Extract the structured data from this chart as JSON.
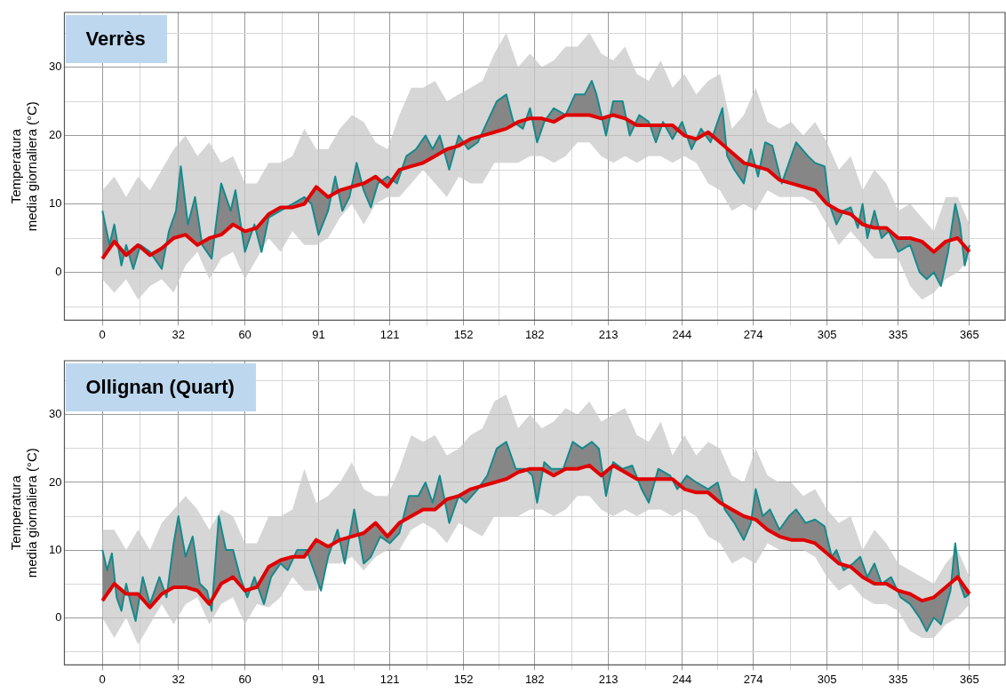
{
  "chart_data": [
    {
      "type": "line",
      "title": "Verrès",
      "ylabel": "Temperatura\nmedia giornaliera (°C)",
      "grid": true,
      "marker": "none",
      "xlim": [
        -16,
        380
      ],
      "ylim": [
        -7,
        38
      ],
      "xticks": [
        0,
        {
          "value": 16,
          "label": null
        },
        32,
        {
          "value": 46,
          "label": null
        },
        60,
        {
          "value": 75.5,
          "label": null
        },
        91,
        {
          "value": 106,
          "label": null
        },
        121,
        {
          "value": 136.5,
          "label": null
        },
        152,
        {
          "value": 167,
          "label": null
        },
        182,
        {
          "value": 197.5,
          "label": null
        },
        213,
        {
          "value": 228.5,
          "label": null
        },
        244,
        {
          "value": 259,
          "label": null
        },
        274,
        {
          "value": 289.5,
          "label": null
        },
        305,
        {
          "value": 320,
          "label": null
        },
        335,
        {
          "value": 350,
          "label": null
        },
        365
      ],
      "yticks": [
        {
          "value": -5,
          "label": null
        },
        0,
        {
          "value": 5,
          "label": null
        },
        10,
        {
          "value": 15,
          "label": null
        },
        20,
        {
          "value": 25,
          "label": null
        },
        30,
        {
          "value": 35,
          "label": null
        }
      ],
      "series": [
        {
          "color": "#e00000",
          "x": [
            0,
            5,
            10,
            15,
            20,
            25,
            30,
            35,
            40,
            45,
            50,
            55,
            60,
            65,
            70,
            75,
            80,
            85,
            90,
            95,
            100,
            105,
            110,
            115,
            120,
            125,
            130,
            135,
            140,
            145,
            150,
            155,
            160,
            165,
            170,
            175,
            180,
            185,
            190,
            195,
            200,
            205,
            210,
            215,
            220,
            225,
            230,
            235,
            240,
            245,
            250,
            255,
            260,
            265,
            270,
            275,
            280,
            285,
            290,
            295,
            300,
            305,
            310,
            315,
            320,
            325,
            330,
            335,
            340,
            345,
            350,
            355,
            360,
            365
          ],
          "values": [
            2,
            4.5,
            2.5,
            4,
            2.5,
            3.5,
            5,
            5.5,
            4,
            5,
            5.5,
            7,
            6,
            6.5,
            8.5,
            9.5,
            9.5,
            10,
            12.5,
            11,
            12,
            12.5,
            13,
            14,
            12.5,
            15,
            15.5,
            16,
            17,
            18,
            18.5,
            19.5,
            20,
            20.5,
            21,
            22,
            22.5,
            22.5,
            22,
            23,
            23,
            23,
            22.5,
            23,
            22.5,
            21.5,
            21.5,
            21.5,
            21.5,
            20,
            19.5,
            20.5,
            19,
            17.5,
            16,
            15.5,
            15,
            13.5,
            13,
            12.5,
            12,
            10,
            9,
            8.5,
            7,
            6.5,
            6.5,
            5,
            5,
            4.5,
            3,
            4.5,
            5,
            3
          ],
          "upper": [
            12,
            14,
            11,
            14,
            12,
            15,
            18,
            20,
            17,
            19,
            16,
            17,
            13,
            13,
            16,
            16,
            17,
            21,
            18,
            18,
            21,
            23,
            22,
            19,
            18,
            23,
            27,
            27,
            28,
            25,
            26,
            27,
            28,
            32,
            35,
            30,
            32,
            30,
            31,
            33,
            33,
            35,
            32,
            31,
            33,
            29,
            28,
            31,
            27,
            29,
            26,
            28,
            29,
            21,
            23,
            27,
            22,
            21,
            22,
            20,
            22,
            19,
            15,
            17,
            12,
            15,
            13,
            9,
            10,
            8,
            6,
            11,
            11,
            7
          ],
          "lower": [
            -1,
            -3,
            -1,
            -4,
            -2,
            -1,
            -3,
            1,
            3,
            -1,
            2,
            3,
            -1,
            2,
            5,
            3,
            6,
            4,
            4,
            5,
            8,
            10,
            7,
            10,
            11,
            11,
            13,
            15,
            13,
            11,
            14,
            13,
            13,
            16,
            16,
            16,
            17,
            17,
            16,
            17,
            19,
            19,
            17,
            16,
            17,
            16,
            17,
            17,
            16,
            17,
            16,
            13,
            12,
            9,
            10,
            9,
            12,
            11,
            11,
            11,
            10,
            7,
            4,
            6,
            4,
            2,
            2,
            2,
            -2,
            -4,
            -3,
            -1,
            0,
            2
          ]
        },
        {
          "color": "#148a8c",
          "x": [
            0,
            3,
            5,
            8,
            10,
            13,
            16,
            20,
            25,
            28,
            31,
            33,
            36,
            39,
            42,
            46,
            50,
            54,
            56,
            60,
            64,
            67,
            70,
            75,
            80,
            85,
            88,
            91,
            95,
            98,
            101,
            104,
            107,
            110,
            113,
            116,
            120,
            124,
            128,
            132,
            136,
            139,
            142,
            146,
            150,
            154,
            158,
            162,
            166,
            170,
            173,
            177,
            180,
            183,
            186,
            190,
            195,
            199,
            203,
            206,
            208,
            212,
            215,
            219,
            222,
            226,
            230,
            233,
            236,
            240,
            244,
            248,
            252,
            256,
            259,
            261,
            263,
            266,
            270,
            273,
            276,
            279,
            282,
            286,
            289,
            292,
            297,
            300,
            304,
            306,
            309,
            312,
            315,
            318,
            320,
            322,
            325,
            328,
            331,
            335,
            340,
            344,
            347,
            350,
            353,
            356,
            359,
            361,
            363,
            365
          ],
          "values": [
            9,
            4,
            7,
            1,
            4,
            0.5,
            4,
            3,
            0.5,
            6,
            9,
            15.5,
            7,
            11,
            4,
            2,
            13,
            9,
            12,
            3,
            7,
            3,
            8,
            9,
            10,
            11,
            10,
            5.5,
            9,
            14,
            9,
            11,
            16,
            12,
            9.5,
            13,
            14,
            13,
            17,
            18,
            20,
            18,
            20,
            15,
            20,
            18,
            19,
            22,
            25,
            26,
            22,
            21,
            24,
            19,
            22,
            24,
            23,
            26,
            26,
            28,
            26,
            20,
            25,
            25,
            20,
            23,
            22,
            19,
            22,
            19.5,
            22,
            18,
            21,
            19,
            22,
            24,
            17,
            15,
            13,
            18,
            14,
            19,
            18.5,
            13,
            16,
            19,
            17,
            16,
            15.5,
            10,
            7,
            9,
            9.5,
            6.5,
            10,
            5,
            9,
            5,
            6,
            3,
            4,
            0,
            -1,
            0,
            -2,
            3,
            10,
            7,
            1,
            4
          ]
        }
      ]
    },
    {
      "type": "line",
      "title": "Ollignan (Quart)",
      "ylabel": "Temperatura\nmedia giornaliera (°C)",
      "grid": true,
      "marker": "none",
      "xlim": [
        -16,
        380
      ],
      "ylim": [
        -7,
        38
      ],
      "xticks": [
        0,
        {
          "value": 16,
          "label": null
        },
        32,
        {
          "value": 46,
          "label": null
        },
        60,
        {
          "value": 75.5,
          "label": null
        },
        91,
        {
          "value": 106,
          "label": null
        },
        121,
        {
          "value": 136.5,
          "label": null
        },
        152,
        {
          "value": 167,
          "label": null
        },
        182,
        {
          "value": 197.5,
          "label": null
        },
        213,
        {
          "value": 228.5,
          "label": null
        },
        244,
        {
          "value": 259,
          "label": null
        },
        274,
        {
          "value": 289.5,
          "label": null
        },
        305,
        {
          "value": 320,
          "label": null
        },
        335,
        {
          "value": 350,
          "label": null
        },
        365
      ],
      "yticks": [
        {
          "value": -5,
          "label": null
        },
        0,
        {
          "value": 5,
          "label": null
        },
        10,
        {
          "value": 15,
          "label": null
        },
        20,
        {
          "value": 25,
          "label": null
        },
        30,
        {
          "value": 35,
          "label": null
        }
      ],
      "series": [
        {
          "color": "#e00000",
          "x": [
            0,
            5,
            10,
            15,
            20,
            25,
            30,
            35,
            40,
            45,
            50,
            55,
            60,
            65,
            70,
            75,
            80,
            85,
            90,
            95,
            100,
            105,
            110,
            115,
            120,
            125,
            130,
            135,
            140,
            145,
            150,
            155,
            160,
            165,
            170,
            175,
            180,
            185,
            190,
            195,
            200,
            205,
            210,
            215,
            220,
            225,
            230,
            235,
            240,
            245,
            250,
            255,
            260,
            265,
            270,
            275,
            280,
            285,
            290,
            295,
            300,
            305,
            310,
            315,
            320,
            325,
            330,
            335,
            340,
            345,
            350,
            355,
            360,
            365
          ],
          "values": [
            2.5,
            5,
            3.5,
            3.5,
            1.5,
            3.5,
            4.5,
            4.5,
            4,
            2,
            5,
            6,
            4,
            4.5,
            7.5,
            8.5,
            9,
            9,
            11.5,
            10.5,
            11.5,
            12,
            12.5,
            14,
            12,
            14,
            15,
            16,
            16,
            17.5,
            18,
            19,
            19.5,
            20,
            20.5,
            21.5,
            22,
            22,
            21,
            22,
            22,
            22.5,
            21,
            22.5,
            21.5,
            20.5,
            20.5,
            20.5,
            20.5,
            19,
            18.5,
            18.5,
            17,
            16,
            15,
            14.5,
            13,
            12,
            11.5,
            11.5,
            11,
            9.5,
            8,
            7.5,
            6,
            5,
            5,
            4,
            3.5,
            2.5,
            3,
            4.5,
            6,
            3.5
          ],
          "upper": [
            13,
            13,
            10,
            13,
            10,
            14,
            16,
            18,
            16,
            13,
            16,
            15,
            11,
            11,
            15,
            15,
            16,
            22,
            17,
            18,
            20,
            23,
            19,
            18,
            18,
            22,
            27,
            26,
            27,
            24,
            25,
            27,
            28,
            32,
            33,
            28,
            30,
            28,
            29,
            31,
            30,
            32,
            29,
            30,
            31,
            27,
            26,
            29,
            24,
            27,
            24,
            26,
            25,
            21,
            20,
            25,
            21,
            20,
            20,
            18,
            19,
            16,
            14,
            15,
            10,
            13,
            11,
            8,
            7,
            6,
            5,
            8,
            10,
            6
          ],
          "lower": [
            0,
            -3,
            0,
            -4,
            -1,
            2,
            -1,
            2,
            3,
            -1,
            2,
            3,
            -1,
            2,
            1.5,
            3,
            6,
            4,
            4,
            8,
            8,
            9,
            7,
            9,
            10,
            10,
            13,
            14,
            13,
            11,
            14,
            13,
            12,
            15,
            15,
            15,
            16,
            16,
            15,
            16,
            18,
            18,
            16,
            15,
            16,
            15,
            16,
            16,
            15,
            16,
            15,
            12,
            11,
            8,
            9,
            8,
            11,
            10,
            10,
            10,
            9,
            6,
            4,
            5,
            3,
            2,
            2,
            1,
            -2,
            -3,
            -3,
            -1,
            0,
            2
          ]
        },
        {
          "color": "#148a8c",
          "x": [
            0,
            2,
            4,
            6,
            8,
            10,
            12,
            14,
            17,
            20,
            24,
            27,
            30,
            32,
            35,
            38,
            41,
            44,
            46,
            49,
            52,
            55,
            58,
            61,
            64,
            68,
            71,
            75,
            78,
            82,
            86,
            90,
            92,
            95,
            99,
            102,
            106,
            110,
            113,
            117,
            121,
            125,
            129,
            133,
            136,
            139,
            142,
            146,
            150,
            153,
            158,
            162,
            166,
            170,
            174,
            178,
            181,
            183,
            186,
            189,
            194,
            198,
            202,
            206,
            209,
            212,
            215,
            219,
            223,
            227,
            230,
            234,
            239,
            242,
            246,
            250,
            255,
            259,
            262,
            266,
            270,
            273,
            275,
            278,
            281,
            285,
            289,
            292,
            296,
            300,
            304,
            307,
            309,
            312,
            316,
            319,
            322,
            325,
            328,
            332,
            336,
            340,
            344,
            347,
            350,
            353,
            357,
            359,
            361,
            363,
            365
          ],
          "values": [
            10,
            7,
            9.5,
            3,
            1,
            5,
            2,
            -0.5,
            6,
            2,
            6,
            3,
            11,
            15,
            9,
            12,
            5,
            4,
            1,
            15,
            10,
            10,
            6,
            3,
            6,
            2,
            6,
            8,
            7,
            10,
            10,
            6,
            4,
            9,
            13,
            8,
            16,
            8,
            9,
            12,
            11,
            12.5,
            18,
            18,
            20,
            17,
            21,
            14,
            18,
            17,
            19,
            21,
            25,
            26,
            22,
            22,
            21,
            17,
            23,
            22,
            22,
            26,
            25,
            26,
            25,
            18,
            23,
            22,
            22.5,
            19,
            17,
            22,
            21,
            19,
            21,
            20,
            19,
            20,
            16,
            14,
            11.5,
            14,
            19,
            15,
            16,
            13,
            15,
            16,
            14,
            14.5,
            13.5,
            9,
            10,
            7,
            8,
            9,
            6,
            8,
            5,
            6,
            3,
            2,
            0,
            -2,
            0,
            -1,
            4,
            11,
            5,
            3,
            3.5
          ]
        }
      ]
    }
  ]
}
